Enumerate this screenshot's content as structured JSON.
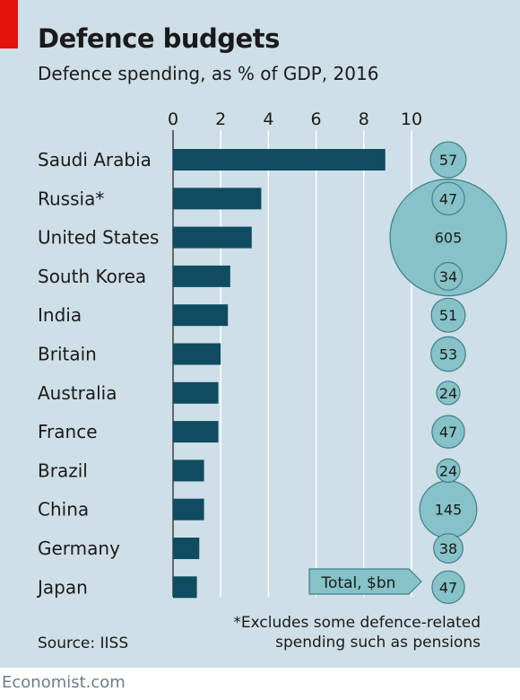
{
  "title": "Defence budgets",
  "subtitle": "Defence spending, as % of GDP, 2016",
  "footnote": [
    "*Excludes some defence-related",
    "spending such as pensions"
  ],
  "source": "Source: IISS",
  "brand": "Economist.com",
  "colors": {
    "background": "#cfdfe7",
    "bar": "#0f4c61",
    "bubble": "#86c2c8",
    "bubble_stroke": "#3f7f8a",
    "accent": "#e3120b"
  },
  "chart_data": {
    "type": "bar",
    "orientation": "horizontal",
    "categories": [
      "Saudi Arabia",
      "Russia*",
      "United States",
      "South Korea",
      "India",
      "Britain",
      "Australia",
      "France",
      "Brazil",
      "China",
      "Germany",
      "Japan"
    ],
    "values": [
      8.9,
      3.7,
      3.3,
      2.4,
      2.3,
      2.0,
      1.9,
      1.9,
      1.3,
      1.3,
      1.1,
      1.0
    ],
    "xlim": [
      0,
      10
    ],
    "xticks": [
      0,
      2,
      4,
      6,
      8,
      10
    ],
    "grid": true,
    "bubbles": {
      "label": "Total, $bn",
      "values": [
        57,
        47,
        605,
        34,
        51,
        53,
        24,
        47,
        24,
        145,
        38,
        47
      ]
    }
  }
}
